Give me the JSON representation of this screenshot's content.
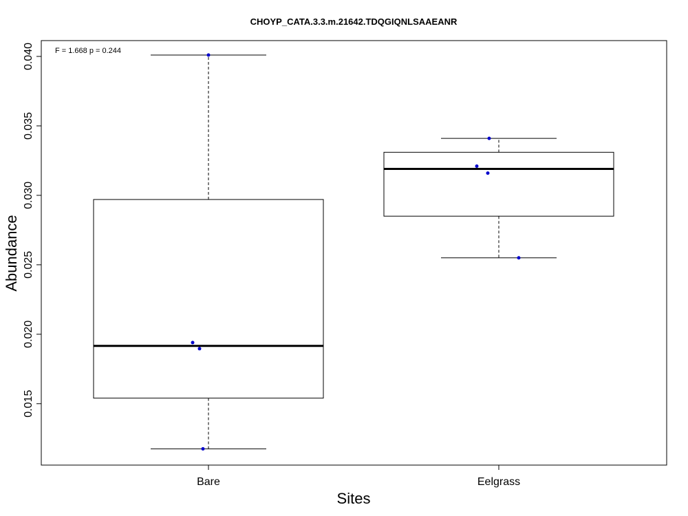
{
  "chart_data": {
    "type": "boxplot",
    "title": "CHOYP_CATA.3.3.m.21642.TDQGIQNLSAAEANR",
    "xlabel": "Sites",
    "ylabel": "Abundance",
    "annotation": "F = 1.668 p = 0.244",
    "categories": [
      "Bare",
      "Eelgrass"
    ],
    "ylim": [
      0.01058,
      0.04114
    ],
    "yticks": [
      0.015,
      0.02,
      0.025,
      0.03,
      0.035,
      0.04
    ],
    "ytick_labels": [
      "0.015",
      "0.020",
      "0.025",
      "0.030",
      "0.035",
      "0.040"
    ],
    "grid": false,
    "boxes": [
      {
        "category": "Bare",
        "whisker_low": 0.01175,
        "q1": 0.0154,
        "median": 0.01916,
        "q3": 0.0297,
        "whisker_high": 0.0401
      },
      {
        "category": "Eelgrass",
        "whisker_low": 0.0255,
        "q1": 0.0285,
        "median": 0.0319,
        "q3": 0.0331,
        "whisker_high": 0.0341
      }
    ],
    "points": [
      {
        "category": "Bare",
        "values": [
          0.0401,
          0.0194,
          0.01896,
          0.01175
        ]
      },
      {
        "category": "Eelgrass",
        "values": [
          0.0341,
          0.0321,
          0.0316,
          0.0255
        ]
      }
    ],
    "point_color": "#0000cc"
  }
}
